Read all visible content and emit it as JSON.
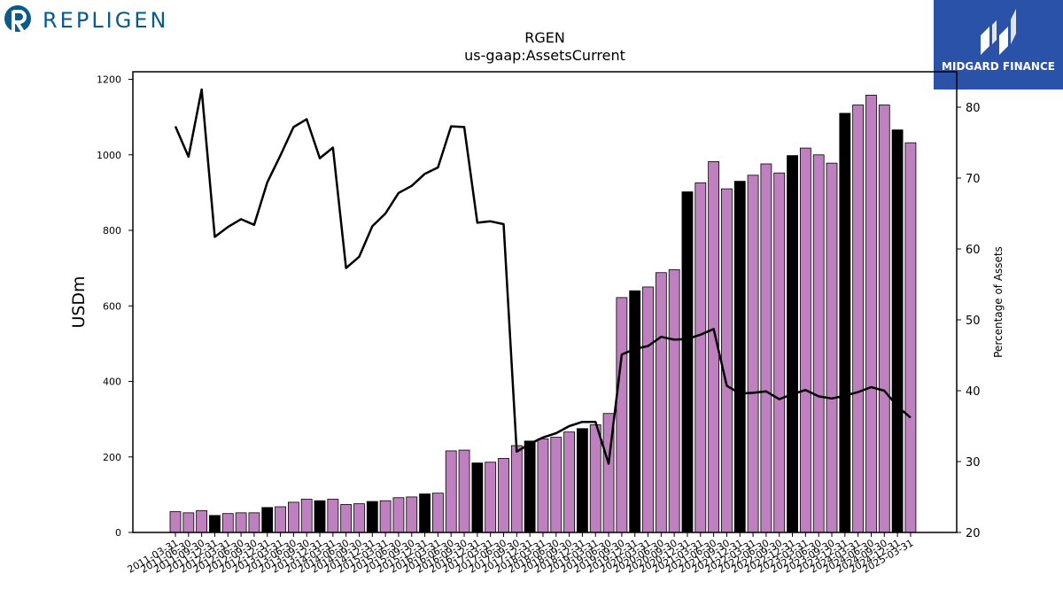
{
  "logos": {
    "left": {
      "text": "REPLIGEN",
      "color": "#0b5a8a"
    },
    "right": {
      "text": "MIDGARD FINANCE",
      "bg": "#2a52a8"
    }
  },
  "chart_data": {
    "type": "bar",
    "title": "RGEN",
    "subtitle": "us-gaap:AssetsCurrent",
    "ylabel": "USDm",
    "y2label": "Percentage of Assets",
    "ylim": [
      0,
      1220
    ],
    "y2lim": [
      20,
      85
    ],
    "yticks": [
      0,
      200,
      400,
      600,
      800,
      1000,
      1200
    ],
    "y2ticks": [
      20,
      30,
      40,
      50,
      60,
      70,
      80
    ],
    "bar_colors": {
      "quarter": "#bf80bf",
      "fiscal_year_end": "#000000"
    },
    "line_color": "#000000",
    "categories": [
      "2011-03-31",
      "2011-06-30",
      "2011-09-30",
      "2011-12-31",
      "2012-03-31",
      "2012-06-30",
      "2012-09-30",
      "2012-12-31",
      "2013-03-31",
      "2013-06-30",
      "2013-09-30",
      "2013-12-31",
      "2014-03-31",
      "2014-06-30",
      "2014-09-30",
      "2014-12-31",
      "2015-03-31",
      "2015-06-30",
      "2015-09-30",
      "2015-12-31",
      "2016-03-31",
      "2016-06-30",
      "2016-09-30",
      "2016-12-31",
      "2017-03-31",
      "2017-06-30",
      "2017-09-30",
      "2017-12-31",
      "2018-03-31",
      "2018-06-30",
      "2018-09-30",
      "2018-12-31",
      "2019-03-31",
      "2019-06-30",
      "2019-09-30",
      "2019-12-31",
      "2020-03-31",
      "2020-06-30",
      "2020-09-30",
      "2020-12-31",
      "2021-03-31",
      "2021-06-30",
      "2021-09-30",
      "2021-12-31",
      "2022-03-31",
      "2022-06-30",
      "2022-09-30",
      "2022-12-31",
      "2023-03-31",
      "2023-06-30",
      "2023-09-30",
      "2023-12-31",
      "2024-03-31",
      "2024-06-30",
      "2024-09-30",
      "2024-12-31",
      "2025-03-31"
    ],
    "series": [
      {
        "name": "USDm",
        "kind": "bar",
        "values": [
          55,
          52,
          58,
          45,
          50,
          52,
          52,
          66,
          68,
          80,
          88,
          84,
          88,
          74,
          76,
          82,
          84,
          92,
          94,
          102,
          104,
          216,
          218,
          184,
          186,
          196,
          230,
          242,
          248,
          252,
          266,
          275,
          285,
          315,
          622,
          640,
          650,
          688,
          696,
          902,
          926,
          982,
          910,
          930,
          946,
          976,
          952,
          998,
          1018,
          1000,
          978,
          1110,
          1132,
          1158,
          1132,
          1066,
          1032
        ],
        "fiscal_year_end": [
          false,
          false,
          false,
          true,
          false,
          false,
          false,
          true,
          false,
          false,
          false,
          true,
          false,
          false,
          false,
          true,
          false,
          false,
          false,
          true,
          false,
          false,
          false,
          true,
          false,
          false,
          false,
          true,
          false,
          false,
          false,
          true,
          false,
          false,
          false,
          true,
          false,
          false,
          false,
          true,
          false,
          false,
          false,
          true,
          false,
          false,
          false,
          true,
          false,
          false,
          false,
          true,
          false,
          false,
          false,
          true,
          false
        ]
      },
      {
        "name": "Percentage of Assets",
        "kind": "line",
        "axis": "y2",
        "values": [
          77.3,
          73.0,
          82.5,
          61.7,
          63.1,
          64.2,
          63.4,
          69.4,
          73.2,
          77.2,
          78.3,
          72.8,
          74.3,
          57.3,
          58.9,
          63.2,
          65.0,
          67.9,
          68.9,
          70.6,
          71.5,
          77.3,
          77.2,
          63.7,
          63.9,
          63.5,
          31.4,
          32.5,
          33.4,
          34.0,
          35.0,
          35.6,
          35.6,
          29.7,
          45.1,
          45.9,
          46.3,
          47.6,
          47.2,
          47.3,
          47.9,
          48.7,
          40.7,
          39.6,
          39.7,
          39.9,
          38.8,
          39.5,
          40.1,
          39.2,
          38.9,
          39.3,
          39.8,
          40.5,
          40.0,
          37.8,
          36.2
        ]
      }
    ]
  }
}
